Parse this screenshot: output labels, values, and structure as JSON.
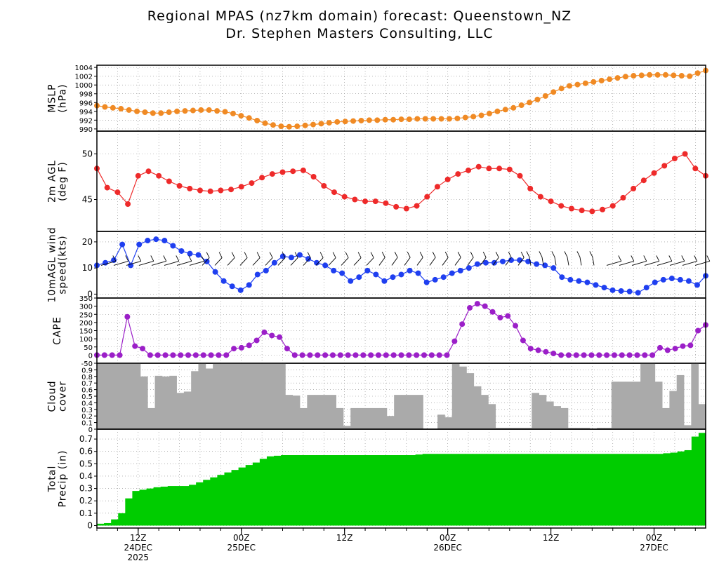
{
  "page": {
    "title": "Regional MPAS (nz7km domain) forecast: Queenstown_NZ",
    "subtitle": "Dr. Stephen Masters Consulting, LLC"
  },
  "colors": {
    "mslp": "#f08a24",
    "temp": "#ee2a2a",
    "wind": "#1f3ff0",
    "cape": "#9b1fc8",
    "cloud": "#aaaaaa",
    "precip": "#00cc00",
    "grid": "#888888"
  },
  "chart_data": {
    "type": "meteogram",
    "x_time_axis": {
      "x_units": "forecast hours from 2025-12-23 06Z",
      "xlim": [
        0,
        88.5
      ],
      "ticks": [
        {
          "x": 6,
          "line1": "12Z",
          "line2": "24DEC",
          "line3": "2025"
        },
        {
          "x": 21,
          "line1": "00Z",
          "line2": "25DEC",
          "line3": ""
        },
        {
          "x": 36,
          "line1": "12Z",
          "line2": "",
          "line3": ""
        },
        {
          "x": 51,
          "line1": "00Z",
          "line2": "26DEC",
          "line3": ""
        },
        {
          "x": 66,
          "line1": "12Z",
          "line2": "",
          "line3": ""
        },
        {
          "x": 81,
          "line1": "00Z",
          "line2": "27DEC",
          "line3": ""
        }
      ]
    },
    "panels": [
      {
        "id": "mslp",
        "type": "line",
        "ylabel_lines": [
          "MSLP",
          "(hPa)"
        ],
        "ylim": [
          989.5,
          1004.5
        ],
        "yticks": [
          990,
          992,
          994,
          996,
          998,
          1000,
          1002,
          1004
        ],
        "series": [
          {
            "name": "MSLP",
            "values": [
              995.3,
              995.0,
              994.8,
              994.6,
              994.3,
              994.0,
              993.8,
              993.6,
              993.6,
              993.8,
              994.0,
              994.1,
              994.2,
              994.3,
              994.3,
              994.1,
              993.9,
              993.5,
              993.0,
              992.5,
              991.9,
              991.3,
              990.9,
              990.6,
              990.5,
              990.6,
              990.8,
              991.0,
              991.2,
              991.4,
              991.6,
              991.7,
              991.8,
              991.9,
              992.0,
              992.0,
              992.1,
              992.1,
              992.2,
              992.2,
              992.3,
              992.3,
              992.3,
              992.3,
              992.3,
              992.4,
              992.6,
              992.8,
              993.1,
              993.5,
              994.0,
              994.4,
              994.8,
              995.4,
              996.0,
              996.7,
              997.5,
              998.4,
              999.2,
              999.8,
              1000.1,
              1000.4,
              1000.7,
              1001.0,
              1001.3,
              1001.6,
              1001.9,
              1002.1,
              1002.2,
              1002.3,
              1002.3,
              1002.3,
              1002.2,
              1002.1,
              1002.0,
              1002.7,
              1003.3
            ]
          }
        ]
      },
      {
        "id": "temp",
        "type": "line",
        "ylabel_lines": [
          "2m AGL",
          "(deg F)"
        ],
        "ylim": [
          41.5,
          52.5
        ],
        "yticks": [
          45,
          50
        ],
        "series": [
          {
            "name": "2m temperature",
            "values": [
              48.4,
              46.3,
              45.8,
              44.5,
              47.6,
              48.1,
              47.6,
              47.0,
              46.5,
              46.2,
              46.0,
              45.9,
              46.0,
              46.1,
              46.4,
              46.8,
              47.4,
              47.8,
              48.0,
              48.1,
              48.2,
              47.5,
              46.5,
              45.8,
              45.3,
              45.0,
              44.8,
              44.8,
              44.6,
              44.2,
              44.0,
              44.3,
              45.3,
              46.4,
              47.2,
              47.8,
              48.2,
              48.6,
              48.4,
              48.4,
              48.3,
              47.6,
              46.2,
              45.3,
              44.8,
              44.3,
              44.0,
              43.8,
              43.7,
              43.9,
              44.3,
              45.2,
              46.2,
              47.1,
              47.9,
              48.7,
              49.5,
              50.0,
              48.4,
              47.6
            ]
          }
        ]
      },
      {
        "id": "wind",
        "type": "line",
        "ylabel_lines": [
          "10mAGL wind",
          "speed(kts)"
        ],
        "ylim": [
          -1.5,
          24
        ],
        "yticks": [
          0,
          10,
          20
        ],
        "series": [
          {
            "name": "10m wind speed",
            "values": [
              11,
              12,
              13,
              19,
              11,
              19,
              20.5,
              21,
              20.5,
              18.5,
              16.5,
              15.5,
              15,
              12.5,
              8.5,
              5,
              3,
              1.5,
              3.5,
              7.5,
              9,
              12,
              14.5,
              14,
              15,
              13.5,
              12,
              11,
              9,
              8,
              5,
              6.5,
              9,
              7.5,
              5,
              6.5,
              7.5,
              9,
              8,
              4.5,
              5.5,
              6.5,
              8,
              9,
              10,
              11.5,
              12,
              12,
              12.5,
              13,
              13,
              12.5,
              11.5,
              11,
              10,
              6.5,
              5.5,
              5,
              4.5,
              3.5,
              2.5,
              1.5,
              1.2,
              1,
              0.5,
              2.5,
              4.5,
              5.5,
              6,
              5.5,
              5,
              3.5,
              7
            ]
          }
        ]
      },
      {
        "id": "cape",
        "type": "line",
        "ylabel_lines": [
          "CAPE"
        ],
        "ylim": [
          -50,
          350
        ],
        "yticks": [
          -50,
          0,
          50,
          100,
          150,
          200,
          250,
          300,
          350
        ],
        "series": [
          {
            "name": "CAPE",
            "values": [
              0,
              0,
              0,
              0,
              235,
              55,
              40,
              0,
              0,
              0,
              0,
              0,
              0,
              0,
              0,
              0,
              0,
              0,
              40,
              45,
              60,
              90,
              140,
              120,
              110,
              40,
              0,
              0,
              0,
              0,
              0,
              0,
              0,
              0,
              0,
              0,
              0,
              0,
              0,
              0,
              0,
              0,
              0,
              0,
              0,
              0,
              0,
              85,
              190,
              290,
              315,
              300,
              265,
              230,
              240,
              180,
              90,
              40,
              30,
              20,
              10,
              0,
              0,
              0,
              0,
              0,
              0,
              0,
              0,
              0,
              0,
              0,
              0,
              0,
              45,
              30,
              40,
              55,
              60,
              150,
              185
            ]
          }
        ]
      },
      {
        "id": "cloud",
        "type": "bar",
        "ylabel_lines": [
          "Cloud",
          "cover"
        ],
        "ylim": [
          0,
          1.0
        ],
        "yticks": [
          0,
          0.1,
          0.2,
          0.3,
          0.4,
          0.5,
          0.6,
          0.7,
          0.8,
          0.9
        ],
        "series": [
          {
            "name": "Cloud cover",
            "values": [
              1.0,
              1.0,
              1.0,
              1.0,
              1.0,
              1.0,
              0.8,
              0.32,
              0.81,
              0.8,
              0.81,
              0.55,
              0.57,
              0.88,
              1.0,
              0.92,
              1.0,
              1.0,
              1.0,
              1.0,
              1.0,
              1.0,
              1.0,
              1.0,
              1.0,
              1.0,
              0.52,
              0.51,
              0.32,
              0.52,
              0.52,
              0.52,
              0.52,
              0.32,
              0.05,
              0.32,
              0.32,
              0.32,
              0.32,
              0.32,
              0.2,
              0.52,
              0.52,
              0.52,
              0.52,
              0.0,
              0.0,
              0.22,
              0.18,
              1.0,
              0.95,
              0.85,
              0.65,
              0.52,
              0.38,
              0.02,
              0.02,
              0.02,
              0.02,
              0.02,
              0.55,
              0.52,
              0.42,
              0.35,
              0.32,
              0.02,
              0.02,
              0.02,
              0.01,
              0.02,
              0.02,
              0.72,
              0.72,
              0.72,
              0.72,
              1.0,
              1.0,
              0.72,
              0.32,
              0.58,
              0.82,
              0.06,
              1.0,
              0.38
            ]
          }
        ]
      },
      {
        "id": "precip",
        "type": "area",
        "ylabel_lines": [
          "Total",
          "Precip (in)"
        ],
        "ylim": [
          -0.02,
          0.78
        ],
        "yticks": [
          0,
          0.1,
          0.2,
          0.3,
          0.4,
          0.5,
          0.6,
          0.7
        ],
        "series": [
          {
            "name": "Accumulated precipitation",
            "values": [
              0.015,
              0.02,
              0.05,
              0.1,
              0.22,
              0.28,
              0.29,
              0.3,
              0.31,
              0.315,
              0.32,
              0.32,
              0.32,
              0.33,
              0.35,
              0.37,
              0.39,
              0.41,
              0.43,
              0.45,
              0.47,
              0.49,
              0.51,
              0.54,
              0.56,
              0.565,
              0.57,
              0.57,
              0.57,
              0.57,
              0.57,
              0.57,
              0.57,
              0.57,
              0.57,
              0.57,
              0.57,
              0.57,
              0.57,
              0.57,
              0.57,
              0.57,
              0.57,
              0.57,
              0.57,
              0.575,
              0.58,
              0.58,
              0.58,
              0.58,
              0.58,
              0.58,
              0.58,
              0.58,
              0.58,
              0.58,
              0.58,
              0.58,
              0.58,
              0.58,
              0.58,
              0.58,
              0.58,
              0.58,
              0.58,
              0.58,
              0.58,
              0.58,
              0.58,
              0.58,
              0.58,
              0.58,
              0.58,
              0.58,
              0.58,
              0.58,
              0.58,
              0.58,
              0.58,
              0.58,
              0.585,
              0.59,
              0.6,
              0.61,
              0.72,
              0.75
            ]
          }
        ]
      }
    ]
  }
}
